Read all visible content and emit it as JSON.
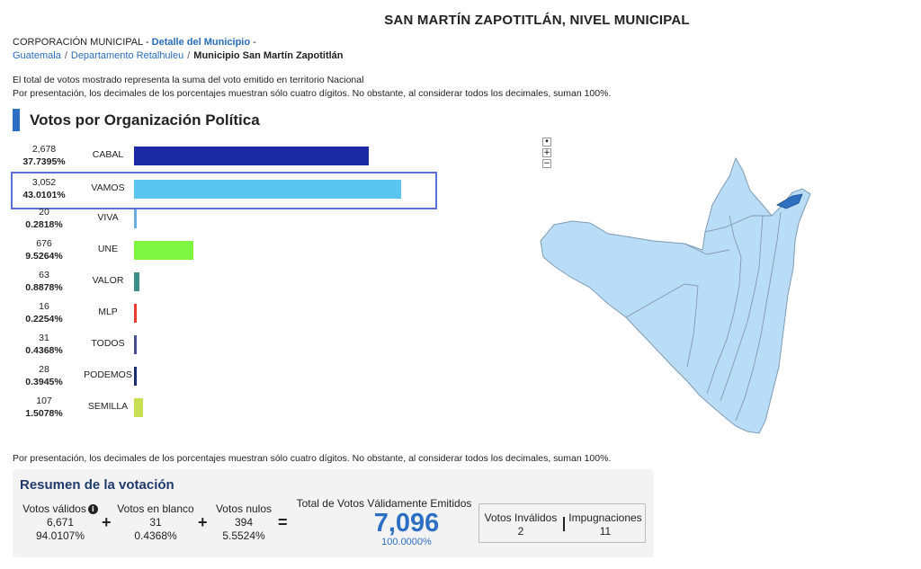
{
  "title": "SAN MARTÍN ZAPOTITLÁN, NIVEL MUNICIPAL",
  "breadcrumb": {
    "org": "CORPORACIÓN MUNICIPAL",
    "dash1": "-",
    "detail_link": "Detalle del Municipio",
    "dash2": "-",
    "items": [
      "Guatemala",
      "Departamento Retalhuleu"
    ],
    "current": "Municipio San Martín Zapotitlán",
    "sep": "/"
  },
  "notes": {
    "line1": "El total de votos mostrado representa la suma del voto emitido en territorio Nacional",
    "line2": "Por presentación, los decimales de los porcentajes muestran sólo cuatro dígitos. No obstante, al considerar todos los decimales, suman 100%.",
    "line3": "Por presentación, los decimales de los porcentajes muestran sólo cuatro dígitos. No obstante, al considerar todos los decimales, suman 100%."
  },
  "section_title": "Votos por Organización Política",
  "chart_data": {
    "type": "bar",
    "orientation": "horizontal",
    "categories": [
      "CABAL",
      "VAMOS",
      "VIVA",
      "UNE",
      "VALOR",
      "MLP",
      "TODOS",
      "PODEMOS",
      "SEMILLA"
    ],
    "votes": [
      "2,678",
      "3,052",
      "20",
      "676",
      "63",
      "16",
      "31",
      "28",
      "107"
    ],
    "values": [
      2678,
      3052,
      20,
      676,
      63,
      16,
      31,
      28,
      107
    ],
    "percentages": [
      "37.7395%",
      "43.0101%",
      "0.2818%",
      "9.5264%",
      "0.8878%",
      "0.2254%",
      "0.4368%",
      "0.3945%",
      "1.5078%"
    ],
    "colors": [
      "#1b2aa3",
      "#5bc5f2",
      "#6aaee0",
      "#7ef542",
      "#3f8c8c",
      "#e83c2e",
      "#4a4f8f",
      "#1c2d6e",
      "#c8de52"
    ],
    "highlighted": "VAMOS",
    "xlim": [
      0,
      3052
    ]
  },
  "map": {
    "zoom_reset": "•",
    "zoom_in": "+",
    "zoom_out": "−"
  },
  "summary": {
    "title": "Resumen de la votación",
    "validos": {
      "label": "Votos válidos",
      "count": "6,671",
      "pct": "94.0107%"
    },
    "blanco": {
      "label": "Votos en blanco",
      "count": "31",
      "pct": "0.4368%"
    },
    "nulos": {
      "label": "Votos nulos",
      "count": "394",
      "pct": "5.5524%"
    },
    "plus": "+",
    "equals": "=",
    "total": {
      "label": "Total de Votos Válidamente Emitidos",
      "count": "7,096",
      "pct": "100.0000%"
    },
    "invalidos": {
      "label": "Votos Inválidos",
      "count": "2"
    },
    "impugnaciones": {
      "label": "Impugnaciones",
      "count": "11"
    },
    "info_icon": "i"
  }
}
